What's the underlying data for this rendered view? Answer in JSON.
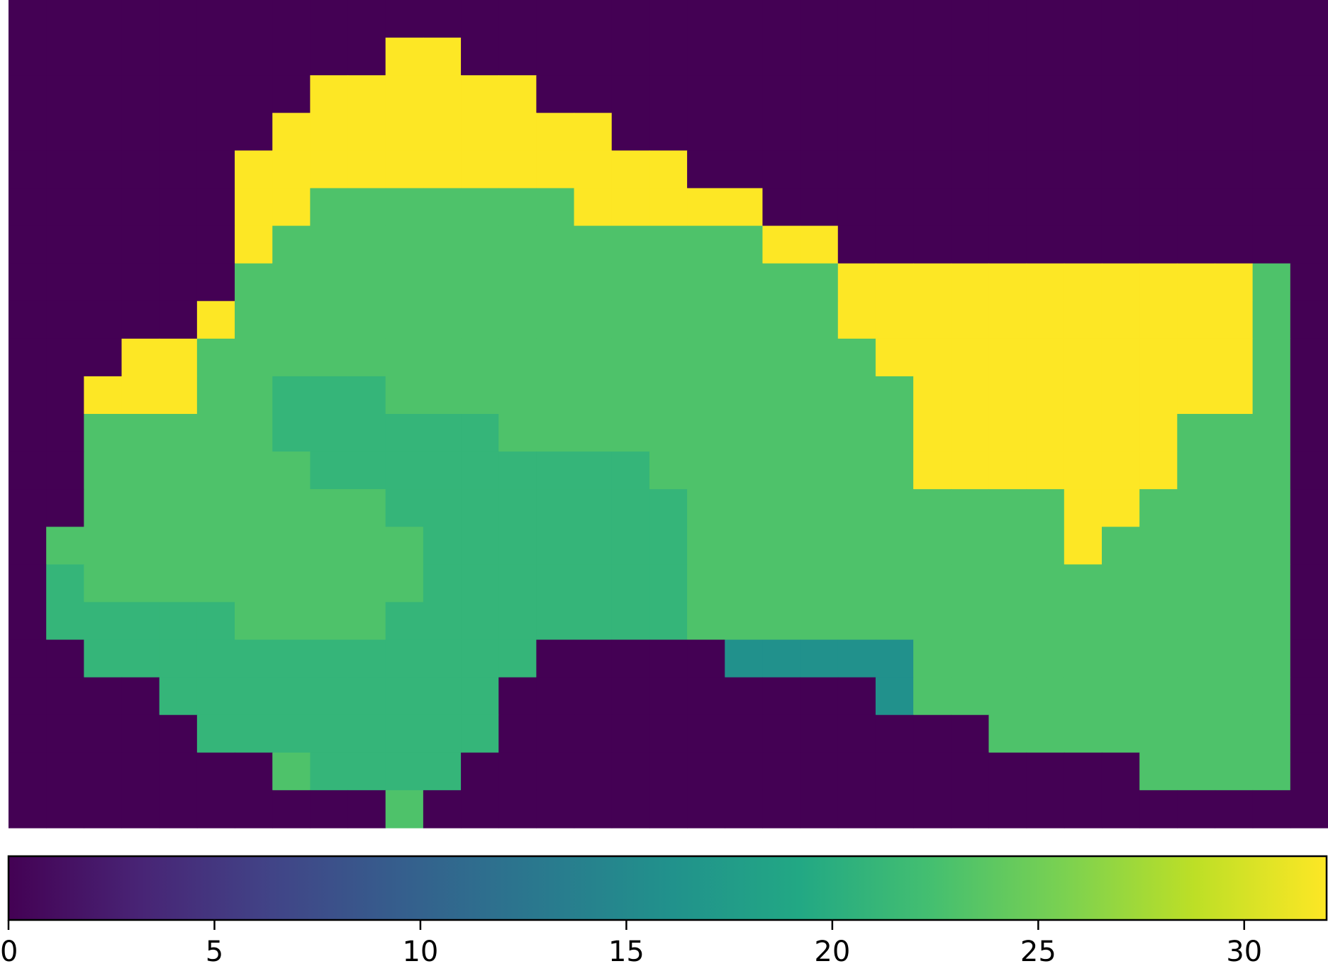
{
  "chart_data": {
    "type": "heatmap",
    "title": "",
    "xlabel": "",
    "ylabel": "",
    "grid": false,
    "colormap": "viridis",
    "colors": {
      "background": "#440154",
      "low": "#2c728e",
      "mid": "#35b779",
      "high": "#3fbc73",
      "max": "#fde725"
    },
    "colorbar": {
      "orientation": "horizontal",
      "location": "bottom",
      "range": [
        0,
        32
      ],
      "ticks": [
        0,
        5,
        10,
        15,
        20,
        25,
        30
      ],
      "tick_labels": [
        "0",
        "5",
        "10",
        "15",
        "20",
        "25",
        "30"
      ]
    },
    "n_cols": 35,
    "n_rows": 22,
    "values": [
      [
        0,
        0,
        0,
        0,
        0,
        0,
        0,
        0,
        0,
        0,
        0,
        0,
        0,
        0,
        0,
        0,
        0,
        0,
        0,
        0,
        0,
        0,
        0,
        0,
        0,
        0,
        0,
        0,
        0,
        0,
        0,
        0,
        0,
        0,
        0
      ],
      [
        0,
        0,
        0,
        0,
        0,
        0,
        0,
        0,
        0,
        0,
        32,
        32,
        0,
        0,
        0,
        0,
        0,
        0,
        0,
        0,
        0,
        0,
        0,
        0,
        0,
        0,
        0,
        0,
        0,
        0,
        0,
        0,
        0,
        0,
        0
      ],
      [
        0,
        0,
        0,
        0,
        0,
        0,
        0,
        0,
        32,
        32,
        32,
        32,
        32,
        32,
        0,
        0,
        0,
        0,
        0,
        0,
        0,
        0,
        0,
        0,
        0,
        0,
        0,
        0,
        0,
        0,
        0,
        0,
        0,
        0,
        0
      ],
      [
        0,
        0,
        0,
        0,
        0,
        0,
        0,
        32,
        32,
        32,
        32,
        32,
        32,
        32,
        32,
        32,
        0,
        0,
        0,
        0,
        0,
        0,
        0,
        0,
        0,
        0,
        0,
        0,
        0,
        0,
        0,
        0,
        0,
        0,
        0
      ],
      [
        0,
        0,
        0,
        0,
        0,
        0,
        32,
        32,
        32,
        32,
        32,
        32,
        32,
        32,
        32,
        32,
        32,
        32,
        0,
        0,
        0,
        0,
        0,
        0,
        0,
        0,
        0,
        0,
        0,
        0,
        0,
        0,
        0,
        0,
        0
      ],
      [
        0,
        0,
        0,
        0,
        0,
        0,
        32,
        32,
        23,
        23,
        23,
        23,
        23,
        23,
        23,
        32,
        32,
        32,
        32,
        32,
        0,
        0,
        0,
        0,
        0,
        0,
        0,
        0,
        0,
        0,
        0,
        0,
        0,
        0,
        0
      ],
      [
        0,
        0,
        0,
        0,
        0,
        0,
        32,
        23,
        23,
        23,
        23,
        23,
        23,
        23,
        23,
        23,
        23,
        23,
        23,
        23,
        32,
        32,
        0,
        0,
        0,
        0,
        0,
        0,
        0,
        0,
        0,
        0,
        0,
        0,
        0
      ],
      [
        0,
        0,
        0,
        0,
        0,
        0,
        23,
        23,
        23,
        23,
        23,
        23,
        23,
        23,
        23,
        23,
        23,
        23,
        23,
        23,
        23,
        23,
        32,
        32,
        32,
        32,
        32,
        32,
        32,
        32,
        32,
        32,
        32,
        23,
        0
      ],
      [
        0,
        0,
        0,
        0,
        0,
        32,
        23,
        23,
        23,
        23,
        23,
        23,
        23,
        23,
        23,
        23,
        23,
        23,
        23,
        23,
        23,
        23,
        32,
        32,
        32,
        32,
        32,
        32,
        32,
        32,
        32,
        32,
        32,
        23,
        0
      ],
      [
        0,
        0,
        0,
        32,
        32,
        23,
        23,
        23,
        23,
        23,
        23,
        23,
        23,
        23,
        23,
        23,
        23,
        23,
        23,
        23,
        23,
        23,
        23,
        32,
        32,
        32,
        32,
        32,
        32,
        32,
        32,
        32,
        32,
        23,
        0
      ],
      [
        0,
        0,
        32,
        32,
        32,
        23,
        23,
        21,
        21,
        21,
        23,
        23,
        23,
        23,
        23,
        23,
        23,
        23,
        23,
        23,
        23,
        23,
        23,
        23,
        32,
        32,
        32,
        32,
        32,
        32,
        32,
        32,
        32,
        23,
        0
      ],
      [
        0,
        0,
        23,
        23,
        23,
        23,
        23,
        21,
        21,
        21,
        21,
        21,
        21,
        23,
        23,
        23,
        23,
        23,
        23,
        23,
        23,
        23,
        23,
        23,
        32,
        32,
        32,
        32,
        32,
        32,
        32,
        23,
        23,
        23,
        0
      ],
      [
        0,
        0,
        23,
        23,
        23,
        23,
        23,
        23,
        21,
        21,
        21,
        21,
        21,
        21,
        21,
        21,
        21,
        23,
        23,
        23,
        23,
        23,
        23,
        23,
        32,
        32,
        32,
        32,
        32,
        32,
        32,
        23,
        23,
        23,
        0
      ],
      [
        0,
        0,
        23,
        23,
        23,
        23,
        23,
        23,
        23,
        23,
        21,
        21,
        21,
        21,
        21,
        21,
        21,
        21,
        23,
        23,
        23,
        23,
        23,
        23,
        23,
        23,
        23,
        23,
        32,
        32,
        23,
        23,
        23,
        23,
        0
      ],
      [
        0,
        23,
        23,
        23,
        23,
        23,
        23,
        23,
        23,
        23,
        23,
        21,
        21,
        21,
        21,
        21,
        21,
        21,
        23,
        23,
        23,
        23,
        23,
        23,
        23,
        23,
        23,
        23,
        32,
        23,
        23,
        23,
        23,
        23,
        0
      ],
      [
        0,
        21,
        23,
        23,
        23,
        23,
        23,
        23,
        23,
        23,
        23,
        21,
        21,
        21,
        21,
        21,
        21,
        21,
        23,
        23,
        23,
        23,
        23,
        23,
        23,
        23,
        23,
        23,
        23,
        23,
        23,
        23,
        23,
        23,
        0
      ],
      [
        0,
        21,
        21,
        21,
        21,
        21,
        23,
        23,
        23,
        23,
        21,
        21,
        21,
        21,
        21,
        21,
        21,
        21,
        23,
        23,
        23,
        23,
        23,
        23,
        23,
        23,
        23,
        23,
        23,
        23,
        23,
        23,
        23,
        23,
        0
      ],
      [
        0,
        0,
        21,
        21,
        21,
        21,
        21,
        21,
        21,
        21,
        21,
        21,
        21,
        21,
        0,
        0,
        0,
        0,
        0,
        16,
        16,
        16,
        16,
        16,
        23,
        23,
        23,
        23,
        23,
        23,
        23,
        23,
        23,
        23,
        0
      ],
      [
        0,
        0,
        0,
        0,
        21,
        21,
        21,
        21,
        21,
        21,
        21,
        21,
        21,
        0,
        0,
        0,
        0,
        0,
        0,
        0,
        0,
        0,
        0,
        16,
        23,
        23,
        23,
        23,
        23,
        23,
        23,
        23,
        23,
        23,
        0
      ],
      [
        0,
        0,
        0,
        0,
        0,
        21,
        21,
        21,
        21,
        21,
        21,
        21,
        21,
        0,
        0,
        0,
        0,
        0,
        0,
        0,
        0,
        0,
        0,
        0,
        0,
        0,
        23,
        23,
        23,
        23,
        23,
        23,
        23,
        23,
        0
      ],
      [
        0,
        0,
        0,
        0,
        0,
        0,
        0,
        23,
        21,
        21,
        21,
        21,
        0,
        0,
        0,
        0,
        0,
        0,
        0,
        0,
        0,
        0,
        0,
        0,
        0,
        0,
        0,
        0,
        0,
        0,
        23,
        23,
        23,
        23,
        0
      ],
      [
        0,
        0,
        0,
        0,
        0,
        0,
        0,
        0,
        0,
        0,
        23,
        0,
        0,
        0,
        0,
        0,
        0,
        0,
        0,
        0,
        0,
        0,
        0,
        0,
        0,
        0,
        0,
        0,
        0,
        0,
        0,
        0,
        0,
        0,
        0
      ]
    ]
  }
}
